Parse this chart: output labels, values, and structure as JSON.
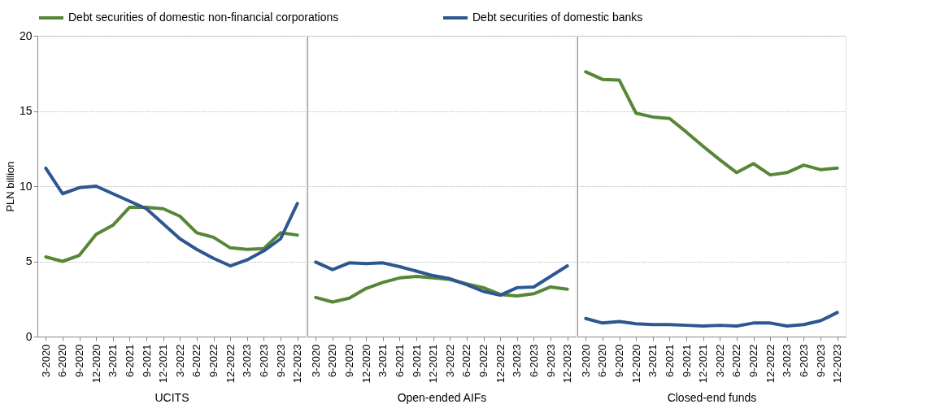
{
  "chart_data": [
    {
      "type": "line",
      "xlabel": "UCITS",
      "ylabel": "PLN billion",
      "legend": "top",
      "grid": "y",
      "line_style": "solid",
      "marker": "none",
      "categories": [
        "3-2020",
        "6-2020",
        "9-2020",
        "12-2020",
        "3-2021",
        "6-2021",
        "9-2021",
        "12-2021",
        "3-2022",
        "6-2022",
        "9-2022",
        "12-2022",
        "3-2023",
        "6-2023",
        "9-2023",
        "12-2023"
      ],
      "ylim": [
        0,
        20
      ],
      "yticks": [
        0,
        5,
        10,
        15,
        20
      ],
      "series": [
        {
          "name": "Debt securities of domestic non-financial corporations",
          "color": "#568736",
          "values": [
            5.3,
            5.0,
            5.4,
            6.8,
            7.4,
            8.6,
            8.6,
            8.5,
            8.0,
            6.9,
            6.6,
            5.9,
            5.8,
            5.85,
            6.9,
            6.75
          ]
        },
        {
          "name": "Debt securities of domestic banks",
          "color": "#2e5790",
          "values": [
            11.2,
            9.5,
            9.9,
            10.0,
            9.5,
            9.0,
            8.5,
            7.5,
            6.5,
            5.8,
            5.2,
            4.7,
            5.1,
            5.7,
            6.5,
            8.85
          ]
        }
      ]
    },
    {
      "type": "line",
      "xlabel": "Open-ended AIFs",
      "grid": "y",
      "tick_labels": "x",
      "line_style": "solid",
      "marker": "none",
      "categories": [
        "3-2020",
        "6-2020",
        "9-2020",
        "12-2020",
        "3-2021",
        "6-2021",
        "9-2021",
        "12-2021",
        "3-2022",
        "6-2022",
        "9-2022",
        "12-2022",
        "3-2023",
        "6-2023",
        "9-2023",
        "12-2023"
      ],
      "ylim": [
        0,
        20
      ],
      "yticks": [
        0,
        5,
        10,
        15,
        20
      ],
      "series": [
        {
          "name": "Debt securities of domestic non-financial corporations",
          "color": "#568736",
          "values": [
            2.6,
            2.3,
            2.55,
            3.2,
            3.6,
            3.9,
            4.0,
            3.9,
            3.8,
            3.5,
            3.25,
            2.8,
            2.7,
            2.85,
            3.3,
            3.15
          ]
        },
        {
          "name": "Debt securities of domestic banks",
          "color": "#2e5790",
          "values": [
            4.95,
            4.45,
            4.9,
            4.85,
            4.9,
            4.65,
            4.35,
            4.05,
            3.85,
            3.45,
            3.0,
            2.75,
            3.25,
            3.3,
            4.0,
            4.7
          ]
        }
      ]
    },
    {
      "type": "line",
      "xlabel": "Closed-end funds",
      "grid": "y",
      "tick_labels": "x",
      "line_style": "solid",
      "marker": "none",
      "categories": [
        "3-2020",
        "6-2020",
        "9-2020",
        "12-2020",
        "3-2021",
        "6-2021",
        "9-2021",
        "12-2021",
        "3-2022",
        "6-2022",
        "9-2022",
        "12-2022",
        "3-2023",
        "6-2023",
        "9-2023",
        "12-2023"
      ],
      "ylim": [
        0,
        20
      ],
      "yticks": [
        0,
        5,
        10,
        15,
        20
      ],
      "series": [
        {
          "name": "Debt securities of domestic non-financial corporations",
          "color": "#568736",
          "values": [
            17.6,
            17.1,
            17.05,
            14.85,
            14.6,
            14.5,
            13.6,
            12.65,
            11.75,
            10.9,
            11.5,
            10.75,
            10.9,
            11.4,
            11.1,
            11.2
          ]
        },
        {
          "name": "Debt securities of domestic banks",
          "color": "#2e5790",
          "values": [
            1.2,
            0.9,
            1.0,
            0.85,
            0.8,
            0.8,
            0.75,
            0.7,
            0.75,
            0.7,
            0.9,
            0.9,
            0.7,
            0.8,
            1.05,
            1.6
          ]
        }
      ]
    }
  ]
}
